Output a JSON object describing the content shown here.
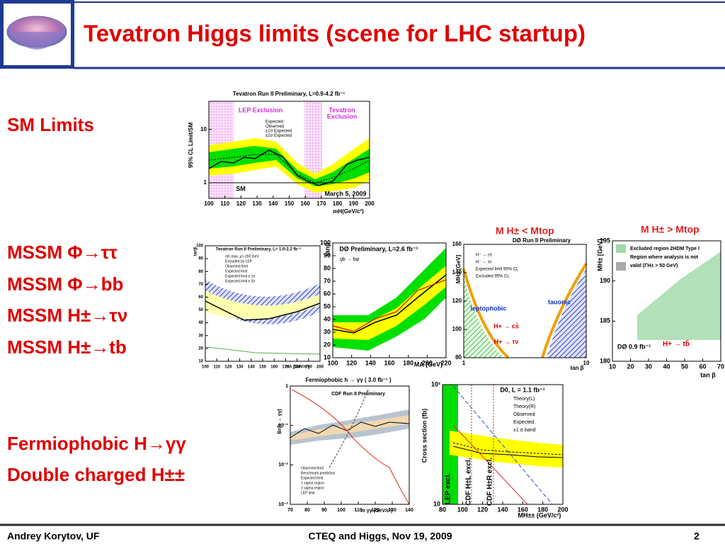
{
  "header": {
    "title": "Tevatron Higgs limits (scene for LHC startup)"
  },
  "sections": [
    "SM Limits",
    "MSSM Φ→ττ",
    "MSSM Φ→bb",
    "MSSM H±→τν",
    "MSSM H±→tb",
    "Fermiophobic H→γγ",
    "Double charged H±±"
  ],
  "plots": [
    {
      "title": "Tevatron Run II Preliminary, L=0.9-4.2 fb⁻¹",
      "y_label": "95% CL Limit/SM",
      "x_label": "mH(GeV/c²)",
      "xticks": [
        100,
        110,
        120,
        130,
        140,
        150,
        160,
        170,
        180,
        190,
        200
      ],
      "yticks": [
        10,
        1
      ],
      "legend": [
        "Expected",
        "Observed",
        "±1σ Expected",
        "±2σ Expected"
      ],
      "annotations": [
        "LEP Exclusion",
        "Tevatron",
        "Exclusion",
        "SM",
        "March 5, 2009"
      ]
    },
    {
      "title": "Tevatron Run II Preliminary, L= 1.0-2.2 fb⁻¹",
      "y_label": "tanβ",
      "x_label": "mA [GeV/c²]",
      "xticks": [
        100,
        110,
        120,
        130,
        140,
        150,
        160,
        170,
        180,
        190,
        200
      ],
      "yticks": [
        100,
        90,
        80,
        70,
        60,
        50,
        40,
        30,
        20,
        10
      ],
      "legend": [
        "mh max, μ=-200 GeV",
        "Excluded by LEP",
        "Observed limit",
        "Expected limit",
        "Expected limit ± 1σ",
        "Expected limit ± 2σ"
      ],
      "annotations": []
    },
    {
      "title": "DØ Preliminary, L=2.6 fb⁻¹",
      "y_label": "tanβ",
      "x_label": "MA (GeV)",
      "xticks": [
        100,
        120,
        140,
        160,
        180,
        200,
        220
      ],
      "yticks": [
        100,
        90,
        80,
        70,
        60,
        50,
        40,
        30,
        20,
        10
      ],
      "legend": [
        "gb → bφ"
      ],
      "annotations": []
    },
    {
      "heading": "M H± < Mtop",
      "title": "DØ Run II Preliminary",
      "y_label": "MH± [GeV]",
      "x_label": "tan β",
      "xticks": [
        1,
        10
      ],
      "yticks": [
        160,
        140,
        120,
        100,
        80
      ],
      "legend": [
        "H⁻ → cs̄",
        "H⁻ → τν",
        "Expected limit 95% CL",
        "Excluded 95% CL"
      ],
      "annotations": [
        "leptophobic",
        "tauonic",
        "H+ → cs̄",
        "H+ → τν"
      ]
    },
    {
      "heading": "M H± > Mtop",
      "title": "DØ 0.9 fb⁻¹",
      "y_label": "MH± [GeV]",
      "x_label": "tan β",
      "xticks": [
        10,
        20,
        30,
        40,
        50,
        60,
        70
      ],
      "yticks": [
        195,
        190,
        185,
        180
      ],
      "legend": [
        "Excluded region 2HDM Type I",
        "Region where analysis is not",
        "valid (ΓH± > 50 GeV)"
      ],
      "annotations": [
        "H+ → tb̄"
      ]
    },
    {
      "heading": "Fermiophobic h → γγ ( 3.0 fb⁻¹ )",
      "title": "CDF Run II Preliminary",
      "y_label": "Br(h → γγ)",
      "x_label": "m γγ (GeV/c²)",
      "xticks": [
        70,
        80,
        90,
        100,
        110,
        120,
        130,
        140
      ],
      "yticks": [
        1,
        "10⁻¹",
        "10⁻²",
        "10⁻³"
      ],
      "legend": [
        "Observed limit",
        "Benchmark prediction",
        "Expected limit",
        "1 sigma region",
        "2 sigma region",
        "LEP limit"
      ],
      "annotations": []
    },
    {
      "title": "D0, L = 1.1 fb⁻¹",
      "y_label": "Cross section (fb)",
      "x_label": "MH±± (GeV/c²)",
      "xticks": [
        80,
        100,
        120,
        140,
        160,
        180,
        200
      ],
      "yticks": [
        "10²",
        10
      ],
      "legend": [
        "Theory(L)",
        "Theory(R)",
        "Observed",
        "Expected",
        "±1 σ band"
      ],
      "annotations": [
        "LEP excl.",
        "CDF H±L excl.",
        "CDF H±R excl."
      ]
    }
  ],
  "footer": {
    "left": "Andrey Korytov, UF",
    "center": "CTEQ and Higgs, Nov 19, 2009",
    "page": "2"
  }
}
